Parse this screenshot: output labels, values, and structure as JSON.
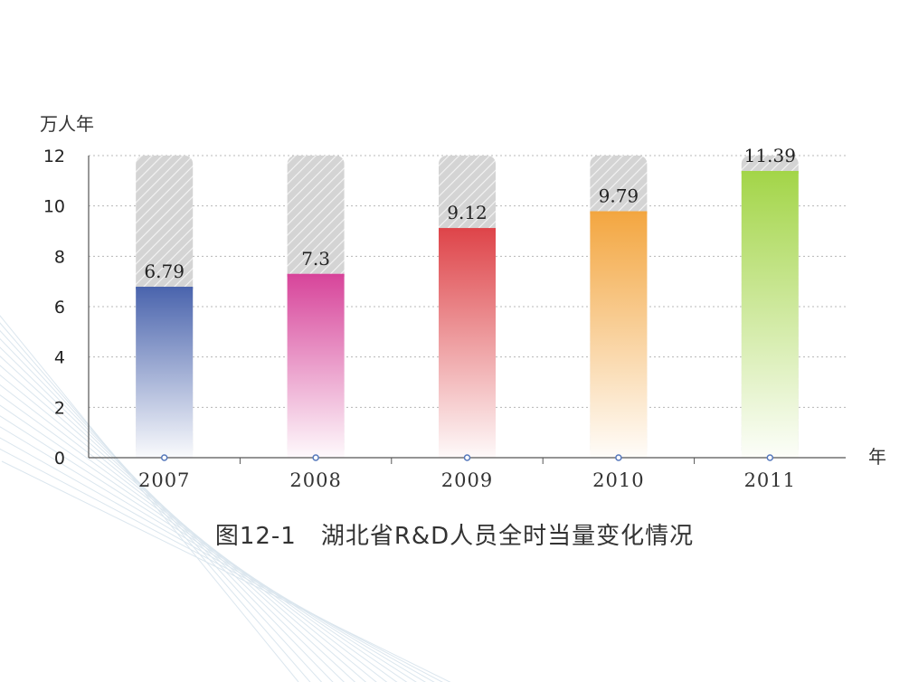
{
  "chart_data": {
    "type": "bar",
    "title": "图12-1　湖北省R&D人员全时当量变化情况",
    "ylabel": "万人年",
    "xlabel": "年",
    "categories": [
      "2007",
      "2008",
      "2009",
      "2010",
      "2011"
    ],
    "values": [
      6.79,
      7.3,
      9.12,
      9.79,
      11.39
    ],
    "value_labels": [
      "6.79",
      "7.3",
      "9.12",
      "9.79",
      "11.39"
    ],
    "ylim": [
      0,
      12
    ],
    "yticks": [
      "0",
      "2",
      "4",
      "6",
      "8",
      "10",
      "12"
    ],
    "grid": true,
    "bar_colors": [
      "#4a64ad",
      "#d7449a",
      "#de4449",
      "#f3a640",
      "#a3d548"
    ],
    "background_bar_color": "#d4d4d4"
  }
}
